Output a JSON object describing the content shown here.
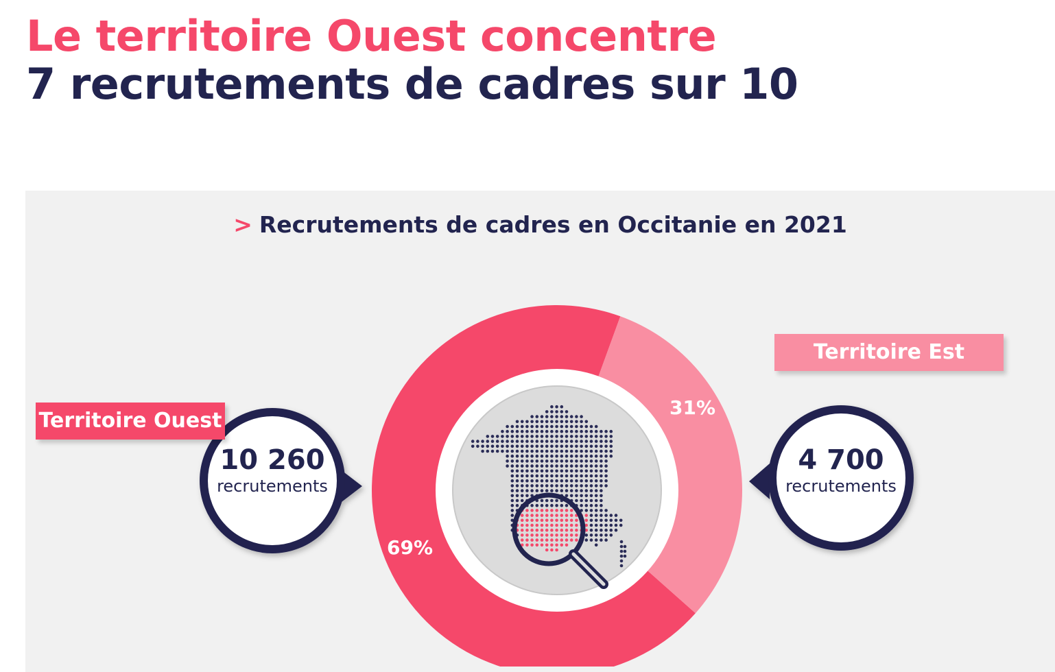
{
  "headline": {
    "line1": "Le territoire Ouest concentre",
    "line2": "7 recrutements de cadres sur 10"
  },
  "panel": {
    "chevron": ">",
    "title": "Recrutements de cadres en Occitanie en 2021"
  },
  "chart_data": {
    "type": "pie",
    "title": "Recrutements de cadres en Occitanie en 2021",
    "slices": [
      {
        "name": "Territoire Ouest",
        "value": 69,
        "label": "69%",
        "count": "10 260",
        "count_label": "recrutements",
        "color": "#f5486a"
      },
      {
        "name": "Territoire Est",
        "value": 31,
        "label": "31%",
        "count": "4 700",
        "count_label": "recrutements",
        "color": "#f98ea2"
      }
    ]
  },
  "colors": {
    "accent": "#f5486a",
    "accent_light": "#f98ea2",
    "navy": "#22244f",
    "panel_bg": "#f1f1f1"
  },
  "icons": {
    "center": "france-map-magnifier-icon"
  }
}
